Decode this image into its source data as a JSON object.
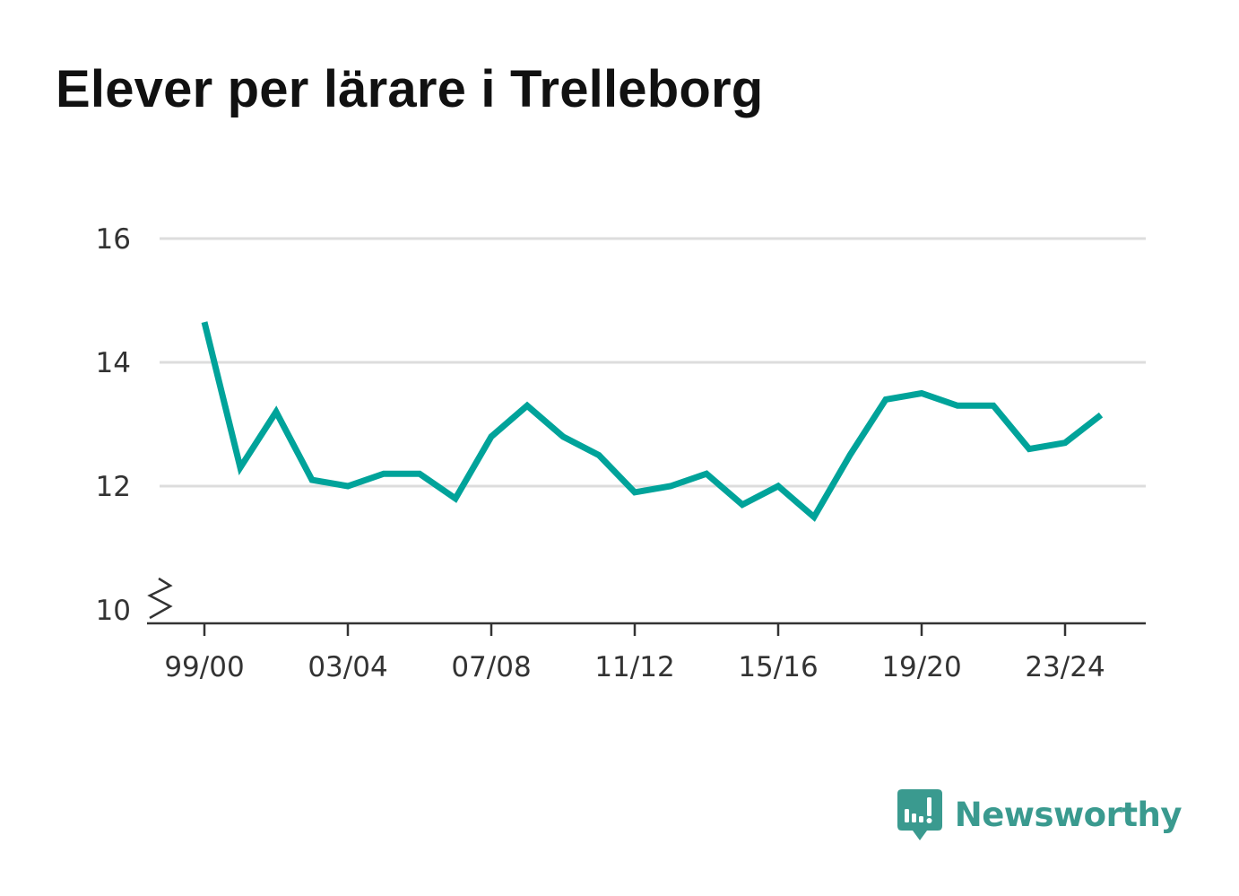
{
  "chart_data": {
    "type": "line",
    "title": "Elever per lärare i Trelleborg",
    "xlabel": "",
    "ylabel": "",
    "x": [
      "99/00",
      "00/01",
      "01/02",
      "02/03",
      "03/04",
      "04/05",
      "05/06",
      "06/07",
      "07/08",
      "08/09",
      "09/10",
      "10/11",
      "11/12",
      "12/13",
      "13/14",
      "14/15",
      "15/16",
      "16/17",
      "17/18",
      "18/19",
      "19/20",
      "20/21",
      "21/22",
      "22/23",
      "23/24",
      "24/25"
    ],
    "x_tick_labels": [
      "99/00",
      "03/04",
      "07/08",
      "11/12",
      "15/16",
      "19/20",
      "23/24"
    ],
    "y_tick_labels": [
      "10",
      "12",
      "14",
      "16"
    ],
    "ylim": [
      10,
      16
    ],
    "y_axis_break": true,
    "grid": "horizontal",
    "series": [
      {
        "values": [
          14.65,
          12.3,
          13.2,
          12.1,
          12.0,
          12.2,
          12.2,
          11.8,
          12.8,
          13.3,
          12.8,
          12.5,
          11.9,
          12.0,
          12.2,
          11.7,
          12.0,
          11.5,
          12.5,
          13.4,
          13.5,
          13.3,
          13.3,
          12.6,
          12.7,
          13.15
        ],
        "color": "#00a39a"
      }
    ]
  },
  "branding": {
    "name": "Newsworthy",
    "logo_icon": "newsworthy-logo-icon",
    "color": "#3a9a8f"
  },
  "colors": {
    "line": "#00a39a",
    "grid": "#dddddd",
    "axis": "#333333",
    "text": "#333333",
    "title": "#111111"
  }
}
